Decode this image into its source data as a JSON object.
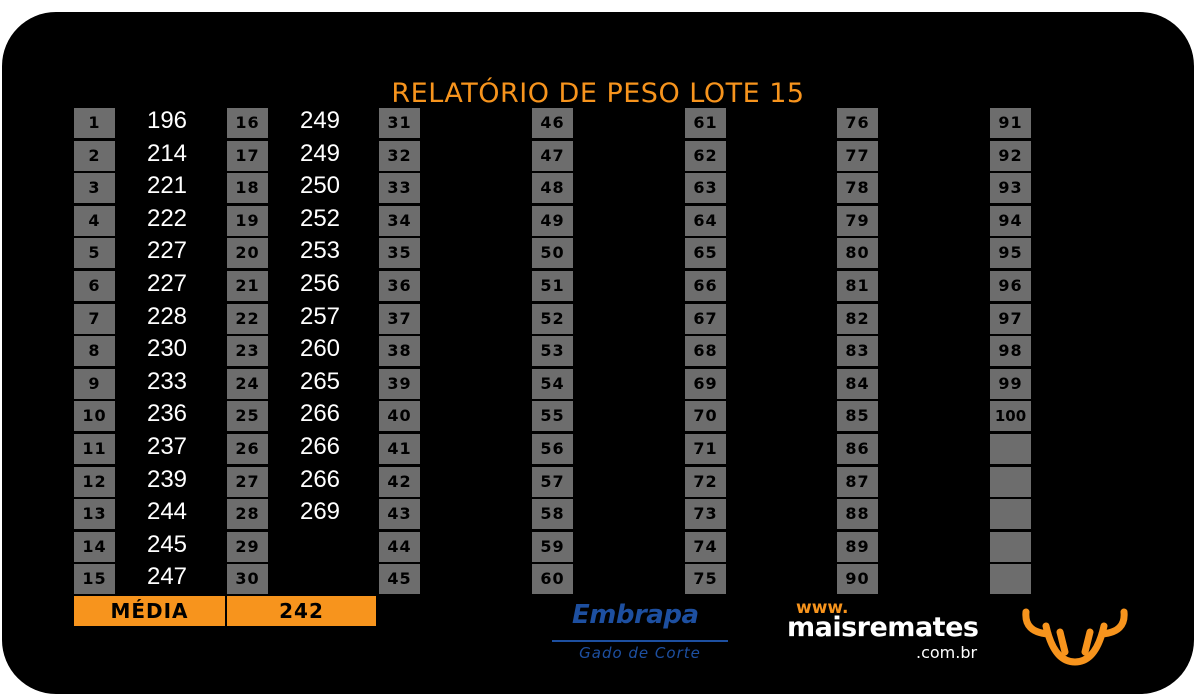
{
  "report": {
    "title": "RELATÓRIO DE PESO LOTE 15"
  },
  "lots": [
    {
      "n": "1",
      "w": "196"
    },
    {
      "n": "2",
      "w": "214"
    },
    {
      "n": "3",
      "w": "221"
    },
    {
      "n": "4",
      "w": "222"
    },
    {
      "n": "5",
      "w": "227"
    },
    {
      "n": "6",
      "w": "227"
    },
    {
      "n": "7",
      "w": "228"
    },
    {
      "n": "8",
      "w": "230"
    },
    {
      "n": "9",
      "w": "233"
    },
    {
      "n": "10",
      "w": "236"
    },
    {
      "n": "11",
      "w": "237"
    },
    {
      "n": "12",
      "w": "239"
    },
    {
      "n": "13",
      "w": "244"
    },
    {
      "n": "14",
      "w": "245"
    },
    {
      "n": "15",
      "w": "247"
    },
    {
      "n": "16",
      "w": "249"
    },
    {
      "n": "17",
      "w": "249"
    },
    {
      "n": "18",
      "w": "250"
    },
    {
      "n": "19",
      "w": "252"
    },
    {
      "n": "20",
      "w": "253"
    },
    {
      "n": "21",
      "w": "256"
    },
    {
      "n": "22",
      "w": "257"
    },
    {
      "n": "23",
      "w": "260"
    },
    {
      "n": "24",
      "w": "265"
    },
    {
      "n": "25",
      "w": "266"
    },
    {
      "n": "26",
      "w": "266"
    },
    {
      "n": "27",
      "w": "266"
    },
    {
      "n": "28",
      "w": "269"
    },
    {
      "n": "29",
      "w": ""
    },
    {
      "n": "30",
      "w": ""
    },
    {
      "n": "31",
      "w": ""
    },
    {
      "n": "32",
      "w": ""
    },
    {
      "n": "33",
      "w": ""
    },
    {
      "n": "34",
      "w": ""
    },
    {
      "n": "35",
      "w": ""
    },
    {
      "n": "36",
      "w": ""
    },
    {
      "n": "37",
      "w": ""
    },
    {
      "n": "38",
      "w": ""
    },
    {
      "n": "39",
      "w": ""
    },
    {
      "n": "40",
      "w": ""
    },
    {
      "n": "41",
      "w": ""
    },
    {
      "n": "42",
      "w": ""
    },
    {
      "n": "43",
      "w": ""
    },
    {
      "n": "44",
      "w": ""
    },
    {
      "n": "45",
      "w": ""
    },
    {
      "n": "46",
      "w": ""
    },
    {
      "n": "47",
      "w": ""
    },
    {
      "n": "48",
      "w": ""
    },
    {
      "n": "49",
      "w": ""
    },
    {
      "n": "50",
      "w": ""
    },
    {
      "n": "51",
      "w": ""
    },
    {
      "n": "52",
      "w": ""
    },
    {
      "n": "53",
      "w": ""
    },
    {
      "n": "54",
      "w": ""
    },
    {
      "n": "55",
      "w": ""
    },
    {
      "n": "56",
      "w": ""
    },
    {
      "n": "57",
      "w": ""
    },
    {
      "n": "58",
      "w": ""
    },
    {
      "n": "59",
      "w": ""
    },
    {
      "n": "60",
      "w": ""
    },
    {
      "n": "61",
      "w": ""
    },
    {
      "n": "62",
      "w": ""
    },
    {
      "n": "63",
      "w": ""
    },
    {
      "n": "64",
      "w": ""
    },
    {
      "n": "65",
      "w": ""
    },
    {
      "n": "66",
      "w": ""
    },
    {
      "n": "67",
      "w": ""
    },
    {
      "n": "68",
      "w": ""
    },
    {
      "n": "69",
      "w": ""
    },
    {
      "n": "70",
      "w": ""
    },
    {
      "n": "71",
      "w": ""
    },
    {
      "n": "72",
      "w": ""
    },
    {
      "n": "73",
      "w": ""
    },
    {
      "n": "74",
      "w": ""
    },
    {
      "n": "75",
      "w": ""
    },
    {
      "n": "76",
      "w": ""
    },
    {
      "n": "77",
      "w": ""
    },
    {
      "n": "78",
      "w": ""
    },
    {
      "n": "79",
      "w": ""
    },
    {
      "n": "80",
      "w": ""
    },
    {
      "n": "81",
      "w": ""
    },
    {
      "n": "82",
      "w": ""
    },
    {
      "n": "83",
      "w": ""
    },
    {
      "n": "84",
      "w": ""
    },
    {
      "n": "85",
      "w": ""
    },
    {
      "n": "86",
      "w": ""
    },
    {
      "n": "87",
      "w": ""
    },
    {
      "n": "88",
      "w": ""
    },
    {
      "n": "89",
      "w": ""
    },
    {
      "n": "90",
      "w": ""
    },
    {
      "n": "91",
      "w": ""
    },
    {
      "n": "92",
      "w": ""
    },
    {
      "n": "93",
      "w": ""
    },
    {
      "n": "94",
      "w": ""
    },
    {
      "n": "95",
      "w": ""
    },
    {
      "n": "96",
      "w": ""
    },
    {
      "n": "97",
      "w": ""
    },
    {
      "n": "98",
      "w": ""
    },
    {
      "n": "99",
      "w": ""
    },
    {
      "n": "100",
      "w": ""
    },
    {
      "n": "",
      "w": ""
    },
    {
      "n": "",
      "w": ""
    },
    {
      "n": "",
      "w": ""
    },
    {
      "n": "",
      "w": ""
    },
    {
      "n": "",
      "w": ""
    }
  ],
  "summary": {
    "label": "MÉDIA",
    "value": "242"
  },
  "logos": {
    "embrapa_name": "Embrapa",
    "embrapa_sub": "Gado de Corte",
    "maisremates_www": "www.",
    "maisremates_name": "maisremates",
    "maisremates_domain": ".com.br",
    "bull_icon": "bull-head-icon"
  },
  "colors": {
    "background": "#000000",
    "accent": "#f7941d",
    "cell": "#6d6d6d",
    "weight_text": "#ffffff",
    "embrapa_blue": "#1d4fa0"
  }
}
